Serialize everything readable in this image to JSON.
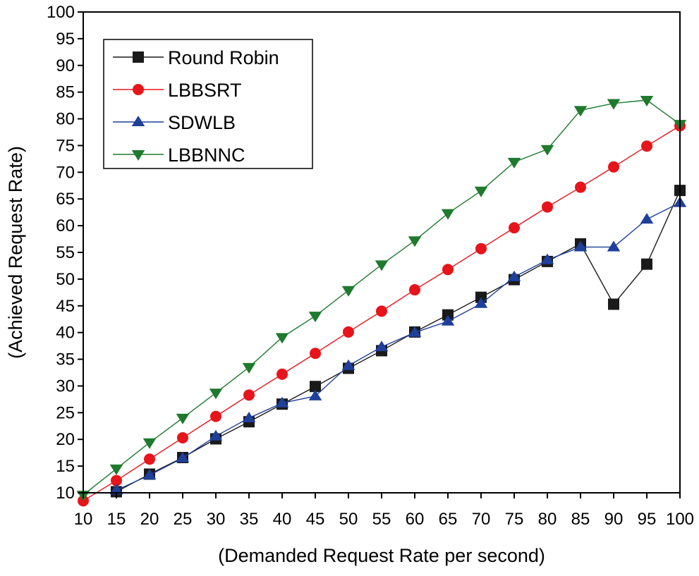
{
  "chart_data": {
    "type": "line",
    "title": "",
    "xlabel": "(Demanded Request Rate per second)",
    "ylabel": "(Achieved Request Rate)",
    "xlim": [
      10,
      100
    ],
    "ylim": [
      10,
      100
    ],
    "x_ticks": [
      10,
      15,
      20,
      25,
      30,
      35,
      40,
      45,
      50,
      55,
      60,
      65,
      70,
      75,
      80,
      85,
      90,
      95,
      100
    ],
    "y_ticks": [
      10,
      15,
      20,
      25,
      30,
      35,
      40,
      45,
      50,
      55,
      60,
      65,
      70,
      75,
      80,
      85,
      90,
      95,
      100
    ],
    "grid": false,
    "legend_position": "top-left",
    "series": [
      {
        "name": "Round Robin",
        "color": "#1a1a1a",
        "marker": "square",
        "x": [
          15,
          20,
          25,
          30,
          35,
          40,
          45,
          50,
          55,
          60,
          65,
          70,
          75,
          80,
          85,
          90,
          95,
          100
        ],
        "values": [
          10.2,
          13.5,
          16.6,
          20.1,
          23.3,
          26.6,
          29.9,
          33.3,
          36.6,
          40.1,
          43.3,
          46.6,
          49.9,
          53.3,
          56.6,
          45.3,
          52.8,
          66.6
        ]
      },
      {
        "name": "LBBSRT",
        "color": "#e8141b",
        "marker": "circle",
        "x": [
          10,
          15,
          20,
          25,
          30,
          35,
          40,
          45,
          50,
          55,
          60,
          65,
          70,
          75,
          80,
          85,
          90,
          95,
          100
        ],
        "values": [
          8.5,
          12.3,
          16.3,
          20.3,
          24.3,
          28.3,
          32.2,
          36.1,
          40.1,
          44.0,
          48.0,
          51.8,
          55.7,
          59.6,
          63.5,
          67.2,
          71.0,
          74.9,
          78.7
        ]
      },
      {
        "name": "SDWLB",
        "color": "#1f3f9a",
        "marker": "triangle-up",
        "x": [
          15,
          20,
          25,
          30,
          35,
          40,
          45,
          50,
          55,
          60,
          65,
          70,
          75,
          80,
          85,
          90,
          95,
          100
        ],
        "values": [
          10.5,
          13.3,
          16.5,
          20.6,
          24.0,
          26.8,
          28.1,
          33.8,
          37.3,
          40.0,
          42.1,
          45.4,
          50.4,
          53.6,
          56.0,
          56.0,
          61.2,
          64.3
        ]
      },
      {
        "name": "LBBNNC",
        "color": "#1f7a2e",
        "marker": "triangle-down",
        "x": [
          10,
          15,
          20,
          25,
          30,
          35,
          40,
          45,
          50,
          55,
          60,
          65,
          70,
          75,
          80,
          85,
          90,
          95,
          100
        ],
        "values": [
          9.6,
          14.5,
          19.4,
          24.0,
          28.7,
          33.5,
          39.1,
          43.1,
          47.9,
          52.7,
          57.2,
          62.3,
          66.5,
          71.9,
          74.3,
          81.6,
          82.9,
          83.5,
          79.0
        ]
      }
    ]
  }
}
